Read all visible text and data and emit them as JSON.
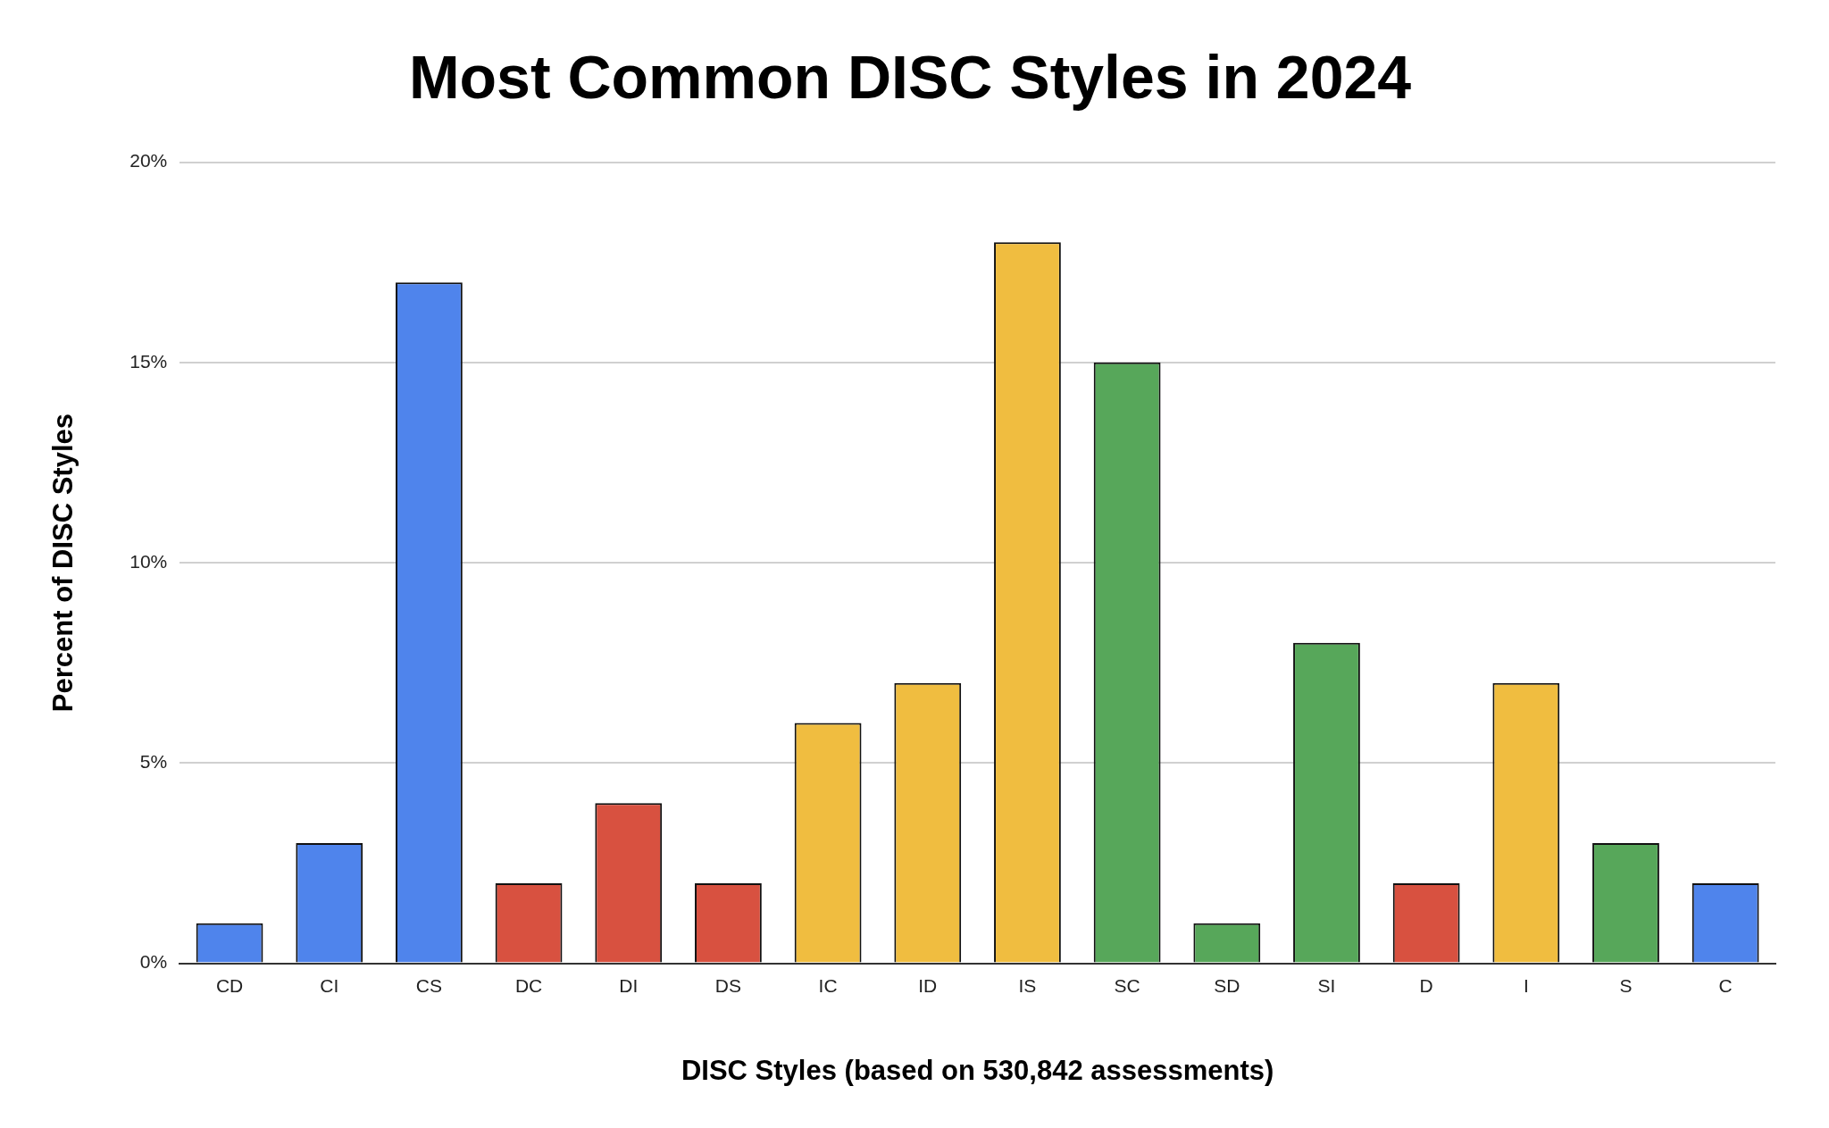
{
  "chart_data": {
    "type": "bar",
    "title": "Most Common DISC Styles in 2024",
    "xlabel": "DISC Styles (based on 530,842 assessments)",
    "ylabel": "Percent of DISC Styles",
    "categories": [
      "CD",
      "CI",
      "CS",
      "DC",
      "DI",
      "DS",
      "IC",
      "ID",
      "IS",
      "SC",
      "SD",
      "SI",
      "D",
      "I",
      "S",
      "C"
    ],
    "values": [
      1,
      3,
      17,
      2,
      4,
      2,
      6,
      7,
      18,
      15,
      1,
      8,
      2,
      7,
      3,
      2
    ],
    "colors": [
      "#4f84ec",
      "#4f84ec",
      "#4f84ec",
      "#d85140",
      "#d85140",
      "#d85140",
      "#f0bd40",
      "#f0bd40",
      "#f0bd40",
      "#57a75a",
      "#57a75a",
      "#57a75a",
      "#d85140",
      "#f0bd40",
      "#57a75a",
      "#4f84ec"
    ],
    "ylim": [
      0,
      20
    ],
    "yticks": [
      {
        "value": 0,
        "label": "0%"
      },
      {
        "value": 5,
        "label": "5%"
      },
      {
        "value": 10,
        "label": "10%"
      },
      {
        "value": 15,
        "label": "15%"
      },
      {
        "value": 20,
        "label": "20%"
      }
    ],
    "grid": "y",
    "legend": false
  }
}
